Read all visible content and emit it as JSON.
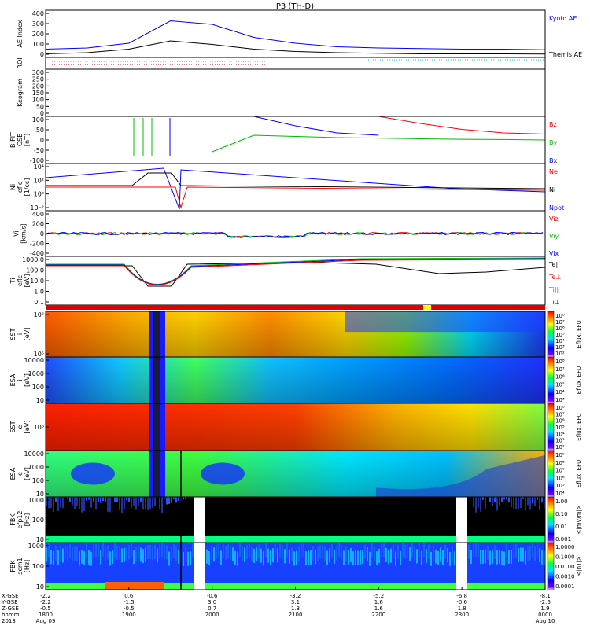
{
  "title": "P3 (TH-D)",
  "panels": [
    {
      "id": "ae",
      "type": "line",
      "ylabel": [
        "AE Index"
      ],
      "yticks": [
        "400",
        "300",
        "200",
        "100",
        "0"
      ],
      "right_labels": [
        {
          "text": "Kyoto AE",
          "color": "#0000ff"
        },
        {
          "text": "Themis AE",
          "color": "#000000"
        }
      ]
    },
    {
      "id": "roi",
      "type": "bars",
      "ylabel": [
        "ROI"
      ],
      "yticks": [],
      "right_labels": []
    },
    {
      "id": "keogram",
      "type": "blank",
      "ylabel": [
        "Keogram"
      ],
      "yticks": [
        "300",
        "250",
        "200",
        "150",
        "100",
        "50",
        "0"
      ],
      "right_labels": []
    },
    {
      "id": "bfit",
      "type": "line",
      "ylabel": [
        "B FIT",
        "GSE",
        "[nT]"
      ],
      "yticks": [
        "100",
        "50",
        "0",
        "-50",
        "-100"
      ],
      "right_labels": [
        {
          "text": "Bz",
          "color": "#ff0000"
        },
        {
          "text": "By",
          "color": "#00bb00"
        },
        {
          "text": "Bx",
          "color": "#0000ff"
        }
      ]
    },
    {
      "id": "ni",
      "type": "line",
      "ylabel": [
        "Ni",
        "eflc",
        "[1/cc]"
      ],
      "yticks": [
        "10⁴",
        "10²",
        "10⁰",
        "10⁻²"
      ],
      "right_labels": [
        {
          "text": "Ne",
          "color": "#ff0000"
        },
        {
          "text": "Ni",
          "color": "#000000"
        },
        {
          "text": "Npot",
          "color": "#0000ff"
        }
      ]
    },
    {
      "id": "vi",
      "type": "line",
      "ylabel": [
        "Vi",
        "[km/s]"
      ],
      "yticks": [
        "400",
        "200",
        "0",
        "-200",
        "-400"
      ],
      "right_labels": [
        {
          "text": "Viz",
          "color": "#ff0000"
        },
        {
          "text": "Viy",
          "color": "#00bb00"
        },
        {
          "text": "Vix",
          "color": "#0000ff"
        }
      ]
    },
    {
      "id": "ti",
      "type": "line",
      "ylabel": [
        "Ti",
        "eflc",
        "[eV]"
      ],
      "yticks": [
        "1000.0",
        "100.0",
        "10.0",
        "1.0",
        "0.1"
      ],
      "right_labels": [
        {
          "text": "Te||",
          "color": "#000000"
        },
        {
          "text": "Te⊥",
          "color": "#ff0000"
        },
        {
          "text": "Ti||",
          "color": "#00bb00"
        },
        {
          "text": "Ti⊥",
          "color": "#0000ff"
        }
      ]
    },
    {
      "id": "sst_i",
      "type": "spec",
      "ylabel": [
        "SST",
        "i",
        "[eV]"
      ],
      "yticks": [
        "10⁶",
        "10⁵"
      ],
      "cbar_label": "Eflux, EFU",
      "cbar_ticks": [
        "10⁸",
        "10⁷",
        "10⁶",
        "10⁵",
        "10⁴",
        "10³",
        "10²"
      ]
    },
    {
      "id": "esa_i",
      "type": "spec",
      "ylabel": [
        "ESA",
        "i",
        "[eV]"
      ],
      "yticks": [
        "10000",
        "1000",
        "100",
        "10"
      ],
      "cbar_label": "Eflux, EFU",
      "cbar_ticks": [
        "10⁸",
        "10⁷",
        "10⁶",
        "10⁵",
        "10⁴",
        "10³"
      ]
    },
    {
      "id": "sst_e",
      "type": "spec",
      "ylabel": [
        "SST",
        "e",
        "[eV]"
      ],
      "yticks": [
        "10⁶"
      ],
      "cbar_label": "Eflux, EFU",
      "cbar_ticks": [
        "10⁸",
        "10⁷",
        "10⁶",
        "10⁵",
        "10⁴",
        "10³",
        "10²"
      ]
    },
    {
      "id": "esa_e",
      "type": "spec",
      "ylabel": [
        "ESA",
        "e",
        "[eV]"
      ],
      "yticks": [
        "10000",
        "1000",
        "100",
        "10"
      ],
      "cbar_label": "Eflux, EFU",
      "cbar_ticks": [
        "10⁹",
        "10⁸",
        "10⁷",
        "10⁶",
        "10⁵",
        "10⁴"
      ]
    },
    {
      "id": "fbk_e",
      "type": "spec",
      "ylabel": [
        "FBK",
        "efp12",
        "[Hz]"
      ],
      "yticks": [
        "1000",
        "100",
        "10"
      ],
      "cbar_label": "<|mV/m|>",
      "cbar_ticks": [
        "1.00",
        "0.10",
        "0.01",
        "0.001"
      ]
    },
    {
      "id": "fbk_b",
      "type": "spec",
      "ylabel": [
        "FBK",
        "scm1",
        "[Hz]"
      ],
      "yticks": [
        "1000",
        "100",
        "10"
      ],
      "cbar_label": "<|nT|>",
      "cbar_ticks": [
        "1.0000",
        "0.1000",
        "0.0100",
        "0.0010",
        "0.0001"
      ]
    }
  ],
  "xaxis": {
    "row_labels": [
      "X-GSE",
      "Y-GSE",
      "Z-GSE",
      "hhmm",
      "2013"
    ],
    "columns": [
      {
        "vals": [
          "-2.2",
          "-2.2",
          "-0.5",
          "1800",
          "Aug 09"
        ]
      },
      {
        "vals": [
          "0.6",
          "-1.5",
          "-0.5",
          "1900",
          ""
        ]
      },
      {
        "vals": [
          "-0.6",
          "3.0",
          "0.7",
          "2000",
          ""
        ]
      },
      {
        "vals": [
          "-3.2",
          "3.1",
          "1.3",
          "2100",
          ""
        ]
      },
      {
        "vals": [
          "-5.2",
          "1.6",
          "1.6",
          "2200",
          ""
        ]
      },
      {
        "vals": [
          "-6.8",
          "-0.6",
          "1.8",
          "2300",
          ""
        ]
      },
      {
        "vals": [
          "-8.1",
          "-2.6",
          "1.9",
          "0000",
          "Aug 10"
        ]
      }
    ]
  },
  "chart_data": {
    "type": "line",
    "title": "P3 (TH-D)",
    "x_time": [
      "1800",
      "1900",
      "2000",
      "2100",
      "2200",
      "2300",
      "0000"
    ],
    "x_dates": [
      "Aug 09",
      "Aug 10"
    ],
    "ae_index": {
      "ylim": [
        0,
        400
      ],
      "series": [
        {
          "name": "Kyoto AE",
          "color": "#0000ff",
          "values": [
            70,
            80,
            120,
            310,
            280,
            170,
            120,
            90,
            80,
            75,
            70,
            70,
            65
          ]
        },
        {
          "name": "Themis AE",
          "color": "#000000",
          "values": [
            30,
            40,
            70,
            140,
            110,
            70,
            50,
            40,
            35,
            30,
            30,
            30,
            28
          ]
        }
      ]
    },
    "bfit": {
      "ylim": [
        -100,
        100
      ],
      "series": [
        {
          "name": "Bz",
          "color": "#ff0000",
          "values": [
            null,
            null,
            null,
            null,
            null,
            null,
            null,
            null,
            100,
            70,
            45,
            30,
            25
          ]
        },
        {
          "name": "By",
          "color": "#00bb00",
          "values": [
            null,
            null,
            null,
            null,
            -50,
            20,
            15,
            10,
            8,
            5,
            3,
            2,
            0
          ]
        },
        {
          "name": "Bx",
          "color": "#0000ff",
          "values": [
            100,
            null,
            null,
            null,
            null,
            100,
            60,
            30,
            20,
            null,
            null,
            null,
            null
          ]
        }
      ]
    },
    "ni": {
      "ylim": [
        "10⁻²",
        "10⁴"
      ],
      "series": [
        {
          "name": "Ne",
          "color": "#ff0000"
        },
        {
          "name": "Ni",
          "color": "#000000"
        },
        {
          "name": "Npot",
          "color": "#0000ff"
        }
      ]
    },
    "vi": {
      "ylim": [
        -400,
        400
      ],
      "series": [
        {
          "name": "Viz",
          "color": "#ff0000"
        },
        {
          "name": "Viy",
          "color": "#00bb00"
        },
        {
          "name": "Vix",
          "color": "#0000ff"
        }
      ]
    },
    "ti": {
      "ylim": [
        0.1,
        1000
      ],
      "series": [
        {
          "name": "Te||",
          "color": "#000000"
        },
        {
          "name": "Te⊥",
          "color": "#ff0000"
        },
        {
          "name": "Ti||",
          "color": "#00bb00"
        },
        {
          "name": "Ti⊥",
          "color": "#0000ff"
        }
      ]
    }
  }
}
